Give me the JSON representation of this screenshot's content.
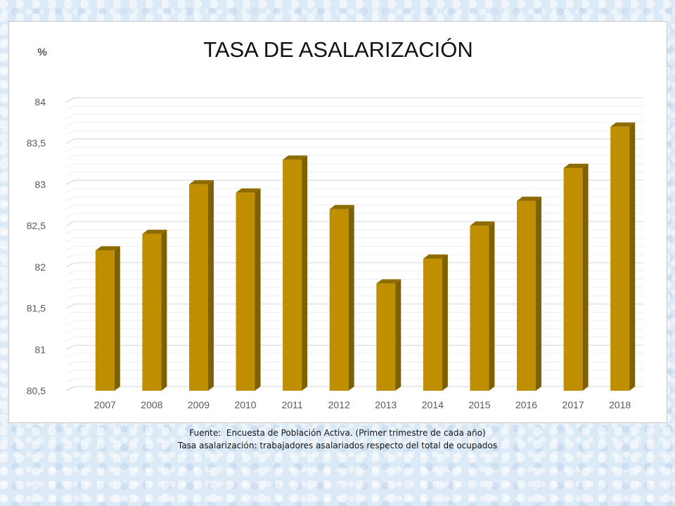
{
  "chart_data": {
    "type": "bar",
    "title": "TASA DE ASALARIZACIÓN",
    "unit_label": "%",
    "categories": [
      "2007",
      "2008",
      "2009",
      "2010",
      "2011",
      "2012",
      "2013",
      "2014",
      "2015",
      "2016",
      "2017",
      "2018"
    ],
    "values": [
      82.2,
      82.4,
      83.0,
      82.9,
      83.3,
      82.7,
      81.8,
      82.1,
      82.5,
      82.8,
      83.2,
      83.7
    ],
    "ylim": [
      80.5,
      84
    ],
    "yticks": [
      80.5,
      81,
      81.5,
      82,
      82.5,
      83,
      83.5,
      84
    ],
    "ytick_labels": [
      "80,5",
      "81",
      "81,5",
      "82",
      "82,5",
      "83",
      "83,5",
      "84"
    ],
    "grid": true,
    "bar_color": "#bf8f00",
    "bar_side_color": "#7f6000",
    "bar_top_color": "#8f6c00"
  },
  "footer": {
    "line1": "Fuente:  Encuesta de Población Activa. (Primer trimestre de cada año)",
    "line2": "Tasa asalarización: trabajadores asalariados respecto del total de ocupados"
  }
}
